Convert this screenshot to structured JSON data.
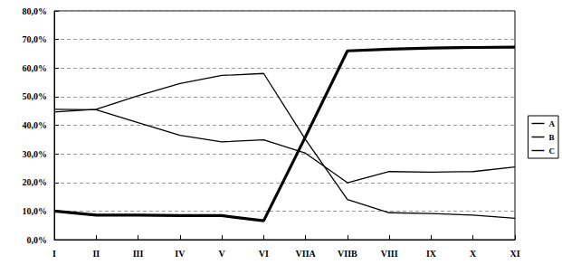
{
  "chart_data": {
    "type": "line",
    "categories": [
      "I",
      "II",
      "III",
      "IV",
      "V",
      "VI",
      "VIIA",
      "VIIB",
      "VIII",
      "IX",
      "X",
      "XI"
    ],
    "series": [
      {
        "name": "A",
        "color": "#000000",
        "marker": "none",
        "line_style": "solid",
        "values": [
          10.0,
          8.6,
          8.6,
          8.4,
          8.4,
          6.6,
          36.0,
          66.0,
          66.6,
          67.0,
          67.2,
          67.3
        ]
      },
      {
        "name": "B",
        "color": "#000000",
        "marker": "none",
        "line_style": "solid",
        "values": [
          44.6,
          45.6,
          50.3,
          54.6,
          57.4,
          58.1,
          35.0,
          14.0,
          9.4,
          9.1,
          8.6,
          7.5
        ]
      },
      {
        "name": "C",
        "color": "#000000",
        "marker": "none",
        "line_style": "solid",
        "values": [
          45.6,
          45.4,
          40.9,
          36.5,
          34.2,
          34.9,
          30.2,
          19.9,
          23.8,
          23.6,
          23.8,
          25.4
        ]
      }
    ],
    "ylim": [
      0,
      80
    ],
    "yticks": [
      {
        "value": 0,
        "label": "0,0%"
      },
      {
        "value": 10,
        "label": "10,0%"
      },
      {
        "value": 20,
        "label": "20,0%"
      },
      {
        "value": 30,
        "label": "30,0%"
      },
      {
        "value": 40,
        "label": "40,0%"
      },
      {
        "value": 50,
        "label": "50,0%"
      },
      {
        "value": 60,
        "label": "60,0%"
      },
      {
        "value": 70,
        "label": "70,0%"
      },
      {
        "value": 80,
        "label": "80,0%"
      }
    ],
    "grid": true,
    "legend": "right"
  }
}
